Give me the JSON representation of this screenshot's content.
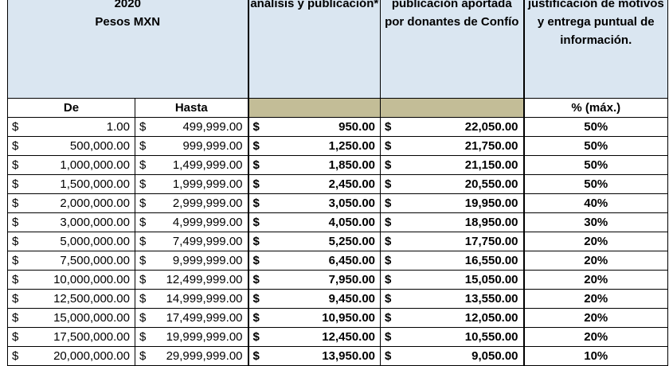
{
  "header": {
    "range_title_line1": "2020",
    "range_title_line2": "Pesos MXN",
    "col_analysis": "análisis y publicación*",
    "col_donation": "publicación aportada por donantes de Confío",
    "col_justification": "justificación de motivos y entrega puntual de información."
  },
  "subheader": {
    "from": "De",
    "to": "Hasta",
    "pct": "% (máx.)"
  },
  "currency_symbol": "$",
  "rows": [
    {
      "from": "1.00",
      "to": "499,999.00",
      "analysis": "950.00",
      "donation": "22,050.00",
      "pct": "50%"
    },
    {
      "from": "500,000.00",
      "to": "999,999.00",
      "analysis": "1,250.00",
      "donation": "21,750.00",
      "pct": "50%"
    },
    {
      "from": "1,000,000.00",
      "to": "1,499,999.00",
      "analysis": "1,850.00",
      "donation": "21,150.00",
      "pct": "50%"
    },
    {
      "from": "1,500,000.00",
      "to": "1,999,999.00",
      "analysis": "2,450.00",
      "donation": "20,550.00",
      "pct": "50%"
    },
    {
      "from": "2,000,000.00",
      "to": "2,999,999.00",
      "analysis": "3,050.00",
      "donation": "19,950.00",
      "pct": "40%"
    },
    {
      "from": "3,000,000.00",
      "to": "4,999,999.00",
      "analysis": "4,050.00",
      "donation": "18,950.00",
      "pct": "30%"
    },
    {
      "from": "5,000,000.00",
      "to": "7,499,999.00",
      "analysis": "5,250.00",
      "donation": "17,750.00",
      "pct": "20%"
    },
    {
      "from": "7,500,000.00",
      "to": "9,999,999.00",
      "analysis": "6,450.00",
      "donation": "16,550.00",
      "pct": "20%"
    },
    {
      "from": "10,000,000.00",
      "to": "12,499,999.00",
      "analysis": "7,950.00",
      "donation": "15,050.00",
      "pct": "20%"
    },
    {
      "from": "12,500,000.00",
      "to": "14,999,999.00",
      "analysis": "9,450.00",
      "donation": "13,550.00",
      "pct": "20%"
    },
    {
      "from": "15,000,000.00",
      "to": "17,499,999.00",
      "analysis": "10,950.00",
      "donation": "12,050.00",
      "pct": "20%"
    },
    {
      "from": "17,500,000.00",
      "to": "19,999,999.00",
      "analysis": "12,450.00",
      "donation": "10,550.00",
      "pct": "20%"
    },
    {
      "from": "20,000,000.00",
      "to": "29,999,999.00",
      "analysis": "13,950.00",
      "donation": "9,050.00",
      "pct": "10%"
    }
  ]
}
